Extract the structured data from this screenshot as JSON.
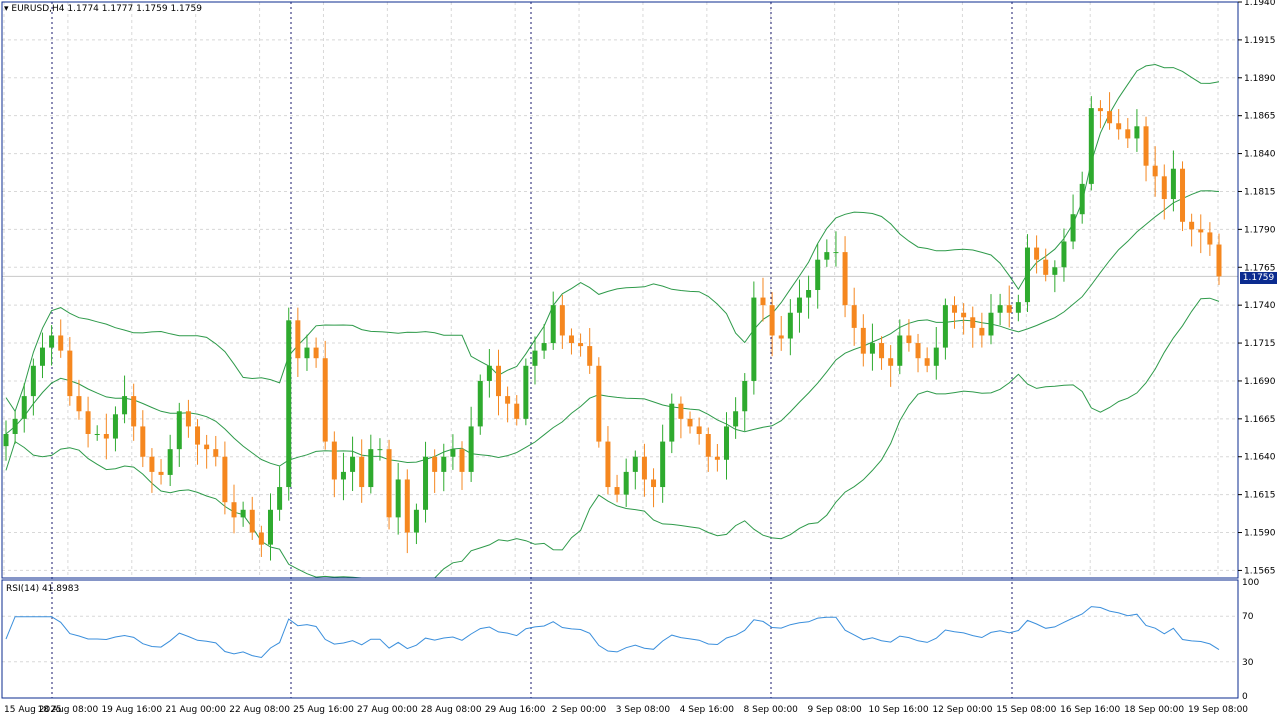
{
  "header": {
    "symbol": "EURUSD,H4",
    "ohlc": "1.1774 1.1777 1.1759 1.1759"
  },
  "price_badge": "1.1759",
  "rsi_label": "RSI(14) 41.8983",
  "colors": {
    "bull": "#2eaa2e",
    "bear": "#f5871f",
    "band": "#2e9a4a",
    "rsi": "#3b8fdc",
    "grid": "#d8d8d8",
    "axis": "#0b2b8f"
  },
  "chart_data": [
    {
      "type": "candlestick",
      "price_axis": {
        "ticks": [
          "1.1940",
          "1.1915",
          "1.1890",
          "1.1865",
          "1.1840",
          "1.1815",
          "1.1790",
          "1.1765",
          "1.1740",
          "1.1715",
          "1.1690",
          "1.1665",
          "1.1640",
          "1.1615",
          "1.1590",
          "1.1565"
        ],
        "range": [
          1.156,
          1.194
        ]
      },
      "time_axis": [
        "15 Aug 2025",
        "18 Aug 08:00",
        "19 Aug 16:00",
        "21 Aug 00:00",
        "22 Aug 08:00",
        "25 Aug 16:00",
        "27 Aug 00:00",
        "28 Aug 08:00",
        "29 Aug 16:00",
        "2 Sep 00:00",
        "3 Sep 08:00",
        "4 Sep 16:00",
        "8 Sep 00:00",
        "9 Sep 08:00",
        "10 Sep 16:00",
        "12 Sep 00:00",
        "15 Sep 08:00",
        "16 Sep 16:00",
        "18 Sep 00:00",
        "19 Sep 08:00"
      ],
      "candles_close": [
        1.1655,
        1.1665,
        1.168,
        1.17,
        1.1712,
        1.172,
        1.171,
        1.168,
        1.167,
        1.1655,
        1.1655,
        1.1652,
        1.1668,
        1.168,
        1.166,
        1.164,
        1.163,
        1.1628,
        1.1645,
        1.167,
        1.166,
        1.1648,
        1.1645,
        1.164,
        1.161,
        1.16,
        1.1605,
        1.159,
        1.1582,
        1.1605,
        1.162,
        1.173,
        1.1705,
        1.1712,
        1.1705,
        1.165,
        1.1625,
        1.163,
        1.164,
        1.162,
        1.1645,
        1.1645,
        1.16,
        1.1625,
        1.159,
        1.1605,
        1.164,
        1.163,
        1.164,
        1.1645,
        1.163,
        1.166,
        1.169,
        1.17,
        1.168,
        1.1675,
        1.1665,
        1.17,
        1.171,
        1.1715,
        1.174,
        1.172,
        1.1715,
        1.1713,
        1.17,
        1.165,
        1.162,
        1.1615,
        1.163,
        1.164,
        1.1625,
        1.162,
        1.165,
        1.1675,
        1.1665,
        1.166,
        1.1655,
        1.164,
        1.1638,
        1.166,
        1.167,
        1.169,
        1.1745,
        1.174,
        1.172,
        1.1718,
        1.1735,
        1.1745,
        1.175,
        1.177,
        1.1775,
        1.1775,
        1.174,
        1.1725,
        1.1708,
        1.1715,
        1.1705,
        1.17,
        1.172,
        1.1715,
        1.1705,
        1.17,
        1.1712,
        1.174,
        1.1735,
        1.1732,
        1.1725,
        1.172,
        1.1735,
        1.174,
        1.1735,
        1.1742,
        1.1778,
        1.177,
        1.176,
        1.1765,
        1.1782,
        1.18,
        1.182,
        1.187,
        1.1868,
        1.186,
        1.1856,
        1.185,
        1.1858,
        1.1832,
        1.1825,
        1.181,
        1.183,
        1.1795,
        1.179,
        1.1788,
        1.178,
        1.1759
      ],
      "rsi": {
        "ticks": [
          "100",
          "70",
          "30",
          "0"
        ],
        "range": [
          0,
          100
        ]
      }
    }
  ]
}
